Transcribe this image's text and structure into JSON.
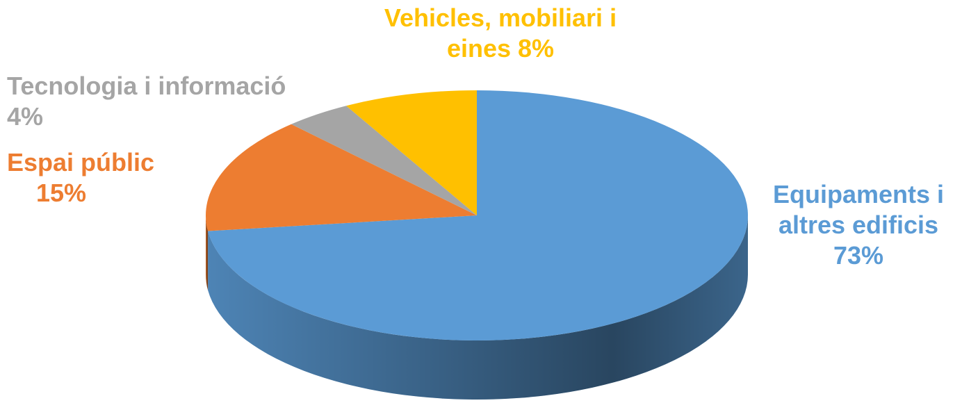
{
  "chart_data": {
    "type": "pie",
    "categories": [
      "Equipaments i altres edificis",
      "Espai públic",
      "Tecnologia i informació",
      "Vehicles, mobiliari i eines"
    ],
    "values": [
      73,
      15,
      4,
      8
    ],
    "value_labels": [
      "73%",
      "15%",
      "4%",
      "8%"
    ],
    "colors": [
      "#5b9bd5",
      "#ed7d31",
      "#a5a5a5",
      "#ffc000"
    ]
  }
}
